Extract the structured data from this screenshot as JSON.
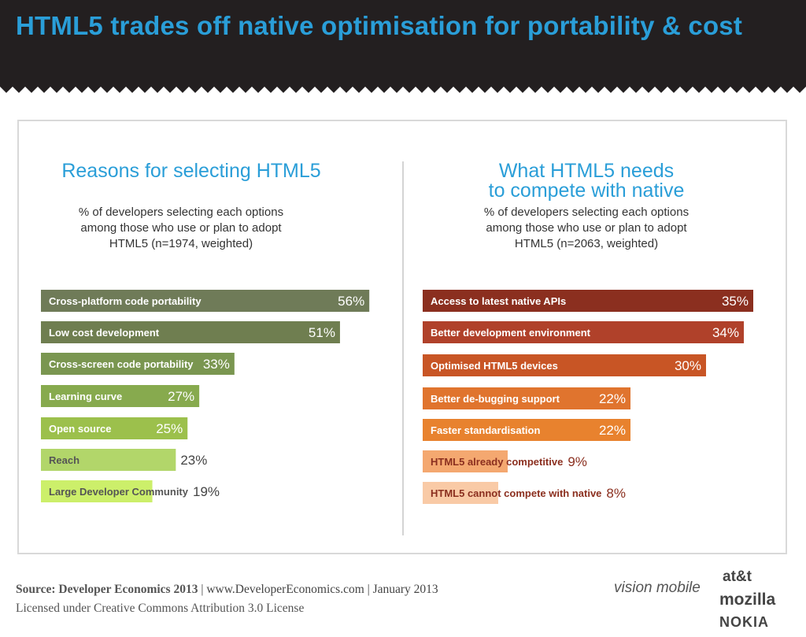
{
  "header": {
    "title": "HTML5 trades off native optimisation for portability & cost"
  },
  "left": {
    "heading": "Reasons for selecting HTML5",
    "sub": [
      "% of developers selecting each options",
      "among those who use or plan to adopt",
      "HTML5 (n=1974, weighted)"
    ]
  },
  "right": {
    "heading": [
      "What HTML5 needs",
      "to compete with native"
    ],
    "sub": [
      "% of developers selecting each options",
      "among those who use or plan to adopt",
      "HTML5 (n=2063, weighted)"
    ]
  },
  "chart_data": [
    {
      "type": "bar",
      "orientation": "horizontal",
      "title": "Reasons for selecting HTML5",
      "categories": [
        "Cross-platform code portability",
        "Low cost development",
        "Cross-screen code portability",
        "Learning curve",
        "Open source",
        "Reach",
        "Large Developer Community"
      ],
      "values": [
        56,
        51,
        33,
        27,
        25,
        23,
        19
      ],
      "labels": [
        "56%",
        "51%",
        "33%",
        "27%",
        "25%",
        "23%",
        "19%"
      ],
      "colors": [
        "#6f7b58",
        "#6f7e50",
        "#7a9650",
        "#87aa4e",
        "#9cc04c",
        "#b2d66a",
        "#ccef6a"
      ]
    },
    {
      "type": "bar",
      "orientation": "horizontal",
      "title": "What HTML5 needs to compete with native",
      "categories": [
        "Access to latest native APIs",
        "Better development environment",
        "Optimised HTML5 devices",
        "Better de-bugging support",
        "Faster standardisation",
        "HTML5  already competitive",
        "HTML5 cannot compete with native"
      ],
      "values": [
        35,
        34,
        30,
        22,
        22,
        9,
        8
      ],
      "labels": [
        "35%",
        "34%",
        "30%",
        "22%",
        "22%",
        "9%",
        "8%"
      ],
      "colors": [
        "#8b2f1f",
        "#b0412a",
        "#c85525",
        "#e0742e",
        "#e8822e",
        "#f4a870",
        "#f9caa6"
      ]
    }
  ],
  "footer": {
    "source_bold": "Source: Developer Economics 2013",
    "source_rest": " | www.DeveloperEconomics.com | January 2013",
    "license": "Licensed under Creative Commons Attribution 3.0 License"
  },
  "logos": {
    "visionmobile": "vision mobile",
    "att": "at&t",
    "mozilla": "mozilla",
    "nokia": "NOKIA"
  }
}
